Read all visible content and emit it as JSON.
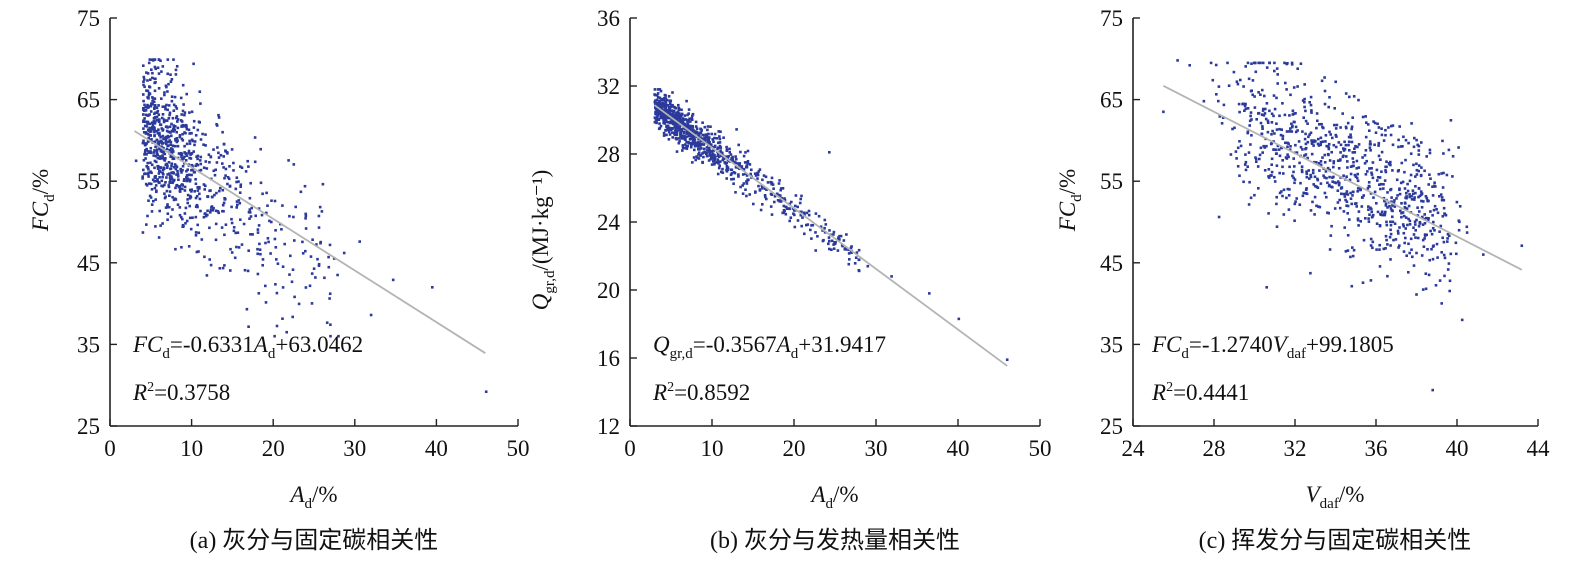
{
  "chart_data": [
    {
      "type": "scatter",
      "caption": "(a) 灰分与固定碳相关性",
      "xlabel": {
        "main": "A",
        "sub": "d",
        "unit": "/%"
      },
      "ylabel": {
        "main": "FC",
        "sub": "d",
        "unit": "/%"
      },
      "xlim": [
        0,
        50
      ],
      "ylim": [
        25,
        75
      ],
      "xticks": [
        0,
        10,
        20,
        30,
        40,
        50
      ],
      "yticks": [
        25,
        35,
        45,
        55,
        65,
        75
      ],
      "trendline": {
        "slope": -0.6331,
        "intercept": 63.0462,
        "x_range": [
          3,
          46
        ]
      },
      "equation": {
        "lhs": "FC",
        "lhs_sub": "d",
        "coef": "=-0.6331",
        "var": "A",
        "var_sub": "d",
        "rest": "+63.0462"
      },
      "r2": "=0.3758",
      "point_count": 900,
      "points": [
        [
          3.2,
          57.5
        ],
        [
          4.1,
          66.8
        ],
        [
          4.8,
          69.5
        ],
        [
          5.3,
          69.8
        ],
        [
          5.9,
          68.9
        ],
        [
          6.5,
          63.2
        ],
        [
          7.4,
          61.0
        ],
        [
          8.2,
          59.8
        ],
        [
          9.1,
          57.2
        ],
        [
          10.3,
          56.1
        ],
        [
          11.6,
          54.0
        ],
        [
          12.8,
          53.3
        ],
        [
          14.2,
          56.5
        ],
        [
          15.6,
          52.1
        ],
        [
          17.1,
          50.4
        ],
        [
          19.3,
          52.0
        ],
        [
          21.0,
          49.1
        ],
        [
          23.4,
          53.7
        ],
        [
          25.8,
          47.4
        ],
        [
          28.7,
          46.2
        ],
        [
          30.6,
          47.6
        ],
        [
          32.0,
          38.6
        ],
        [
          34.7,
          42.9
        ],
        [
          39.5,
          42.0
        ],
        [
          46.1,
          29.2
        ]
      ]
    },
    {
      "type": "scatter",
      "caption": "(b) 灰分与发热量相关性",
      "xlabel": {
        "main": "A",
        "sub": "d",
        "unit": "/%"
      },
      "ylabel": {
        "main": "Q",
        "sub": "gr,d",
        "unit": "/(MJ·kg⁻¹)"
      },
      "xlim": [
        0,
        50
      ],
      "ylim": [
        12,
        36
      ],
      "xticks": [
        0,
        10,
        20,
        30,
        40,
        50
      ],
      "yticks": [
        12,
        16,
        20,
        24,
        28,
        32,
        36
      ],
      "trendline": {
        "slope": -0.3567,
        "intercept": 31.9417,
        "x_range": [
          3,
          46
        ]
      },
      "equation": {
        "lhs": "Q",
        "lhs_sub": "gr,d",
        "coef": "=-0.3567",
        "var": "A",
        "var_sub": "d",
        "rest": "+31.9417"
      },
      "r2": "=0.8592",
      "point_count": 900,
      "points": [
        [
          3.0,
          31.5
        ],
        [
          4.2,
          30.9
        ],
        [
          5.8,
          30.1
        ],
        [
          7.5,
          29.4
        ],
        [
          9.6,
          28.6
        ],
        [
          11.8,
          27.8
        ],
        [
          13.9,
          27.1
        ],
        [
          16.2,
          26.1
        ],
        [
          18.4,
          25.3
        ],
        [
          20.9,
          24.6
        ],
        [
          24.3,
          28.1
        ],
        [
          26.2,
          22.4
        ],
        [
          29.0,
          21.4
        ],
        [
          31.9,
          20.8
        ],
        [
          36.5,
          19.8
        ],
        [
          40.1,
          18.3
        ],
        [
          46.0,
          15.9
        ]
      ]
    },
    {
      "type": "scatter",
      "caption": "(c) 挥发分与固定碳相关性",
      "xlabel": {
        "main": "V",
        "sub": "daf",
        "unit": "/%"
      },
      "ylabel": {
        "main": "FC",
        "sub": "d",
        "unit": "/%"
      },
      "xlim": [
        24,
        44
      ],
      "ylim": [
        25,
        75
      ],
      "xticks": [
        24,
        28,
        32,
        36,
        40,
        44
      ],
      "yticks": [
        25,
        35,
        45,
        55,
        65,
        75
      ],
      "trendline": {
        "slope": -1.274,
        "intercept": 99.1805,
        "x_range": [
          25.5,
          43.2
        ]
      },
      "equation": {
        "lhs": "FC",
        "lhs_sub": "d",
        "coef": "=-1.2740",
        "var": "V",
        "var_sub": "daf",
        "rest": "+99.1805"
      },
      "r2": "=0.4441",
      "point_count": 900,
      "points": [
        [
          25.5,
          63.5
        ],
        [
          26.2,
          69.8
        ],
        [
          26.8,
          69.2
        ],
        [
          27.5,
          64.8
        ],
        [
          28.4,
          62.1
        ],
        [
          29.3,
          67.4
        ],
        [
          30.2,
          65.9
        ],
        [
          30.6,
          42.0
        ],
        [
          31.4,
          60.2
        ],
        [
          32.1,
          58.5
        ],
        [
          32.9,
          56.0
        ],
        [
          33.6,
          54.8
        ],
        [
          34.5,
          52.7
        ],
        [
          35.3,
          51.9
        ],
        [
          36.2,
          49.5
        ],
        [
          37.1,
          48.6
        ],
        [
          38.0,
          46.2
        ],
        [
          38.8,
          29.4
        ],
        [
          39.6,
          44.9
        ],
        [
          40.5,
          48.7
        ],
        [
          41.3,
          46.0
        ],
        [
          43.2,
          47.1
        ]
      ]
    }
  ]
}
